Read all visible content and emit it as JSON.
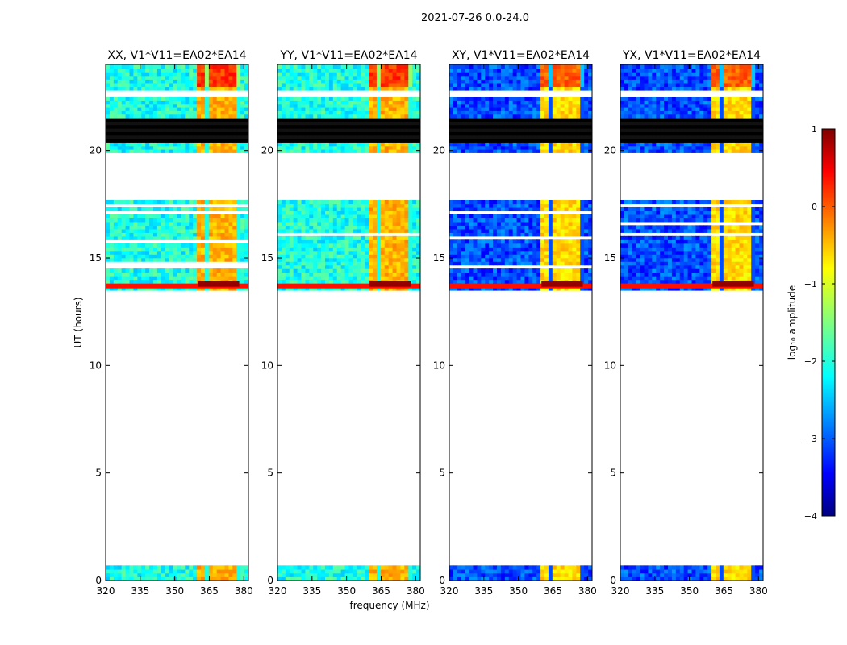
{
  "figure_title": "2021-07-26 0.0-24.0",
  "chart_data": {
    "type": "heatmap",
    "title": "2021-07-26 0.0-24.0",
    "xlabel": "frequency (MHz)",
    "ylabel": "UT (hours)",
    "xlim": [
      320,
      382
    ],
    "ylim": [
      0,
      24
    ],
    "x_ticks": [
      320,
      335,
      350,
      365,
      380
    ],
    "y_ticks": [
      0,
      5,
      10,
      15,
      20
    ],
    "grid": false,
    "panels": [
      {
        "title": "XX, V1*V11=EA02*EA14",
        "polarization": "XX",
        "base_level": -2.0,
        "band_level": -0.5
      },
      {
        "title": "YY, V1*V11=EA02*EA14",
        "polarization": "YY",
        "base_level": -2.0,
        "band_level": -0.5
      },
      {
        "title": "XY, V1*V11=EA02*EA14",
        "polarization": "XY",
        "base_level": -3.0,
        "band_level": -0.7
      },
      {
        "title": "YX, V1*V11=EA02*EA14",
        "polarization": "YX",
        "base_level": -3.0,
        "band_level": -0.7
      }
    ],
    "data_time_ranges_hours": [
      [
        0.0,
        0.7
      ],
      [
        13.5,
        17.7
      ],
      [
        19.9,
        22.5
      ],
      [
        22.8,
        24.0
      ]
    ],
    "flagged_black_range_hours": [
      20.3,
      21.5
    ],
    "bright_row_hours": 13.7,
    "rfi_band_mhz": [
      360,
      378
    ],
    "colorbar": {
      "label": "log₁₀ amplitude",
      "range": [
        -4,
        1
      ],
      "ticks": [
        -4,
        -3,
        -2,
        -1,
        0,
        1
      ],
      "tick_labels": [
        "−4",
        "−3",
        "−2",
        "−1",
        "0",
        "1"
      ],
      "colormap": "jet"
    }
  }
}
